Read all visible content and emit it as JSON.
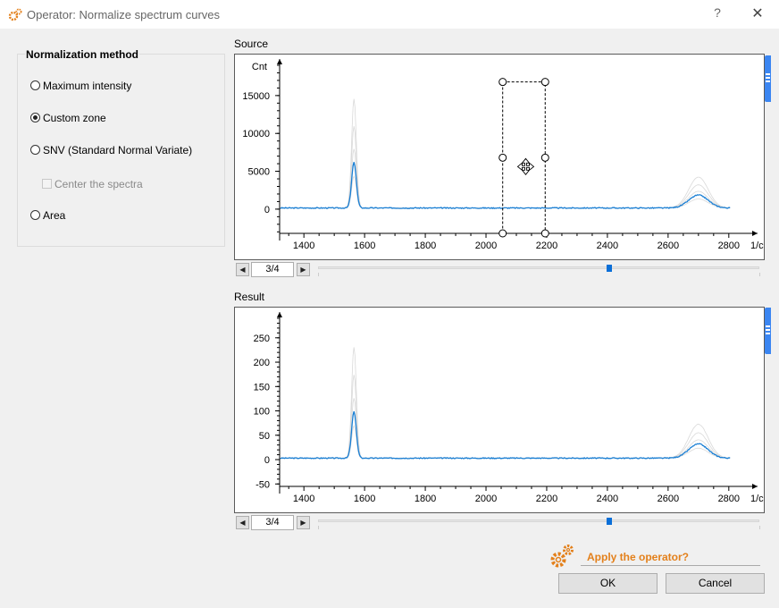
{
  "window": {
    "title": "Operator: Normalize spectrum curves",
    "help": "?",
    "close": "✕"
  },
  "method": {
    "title": "Normalization method",
    "options": [
      {
        "label": "Maximum intensity",
        "checked": false
      },
      {
        "label": "Custom zone",
        "checked": true
      },
      {
        "label": "SNV (Standard Normal Variate)",
        "checked": false
      },
      {
        "label": "Area",
        "checked": false
      }
    ],
    "center_checkbox": {
      "label": "Center the spectra",
      "checked": false,
      "enabled": false
    }
  },
  "source": {
    "label": "Source",
    "page": "3/4",
    "slider_fraction": 0.66,
    "chart_data": {
      "type": "line",
      "ylabel": "Cnt",
      "xlabel": "1/c",
      "x_ticks": [
        1400,
        1600,
        1800,
        2000,
        2200,
        2400,
        2600,
        2800
      ],
      "y_ticks": [
        0,
        5000,
        10000,
        15000
      ],
      "xlim": [
        1320,
        2830
      ],
      "ylim": [
        -3200,
        19000
      ],
      "peaks": [
        {
          "x": 1565,
          "y": 6000,
          "width": 11
        },
        {
          "x": 2700,
          "y": 1700,
          "width": 45
        }
      ],
      "baseline": 150,
      "color": "#1a7fd4",
      "selection_zone": {
        "x_from": 2055,
        "x_to": 2195,
        "y_from": -3200,
        "y_to": 16800
      }
    }
  },
  "result": {
    "label": "Result",
    "page": "3/4",
    "slider_fraction": 0.66,
    "chart_data": {
      "type": "line",
      "ylabel": "",
      "xlabel": "1/c",
      "x_ticks": [
        1400,
        1600,
        1800,
        2000,
        2200,
        2400,
        2600,
        2800
      ],
      "y_ticks": [
        -50,
        0,
        50,
        100,
        150,
        200,
        250
      ],
      "xlim": [
        1320,
        2830
      ],
      "ylim": [
        -55,
        290
      ],
      "peaks": [
        {
          "x": 1565,
          "y": 95,
          "width": 11
        },
        {
          "x": 2700,
          "y": 29,
          "width": 45
        }
      ],
      "baseline": 3,
      "color": "#1a7fd4"
    }
  },
  "footer": {
    "apply_label": "Apply the operator?",
    "ok": "OK",
    "cancel": "Cancel"
  }
}
